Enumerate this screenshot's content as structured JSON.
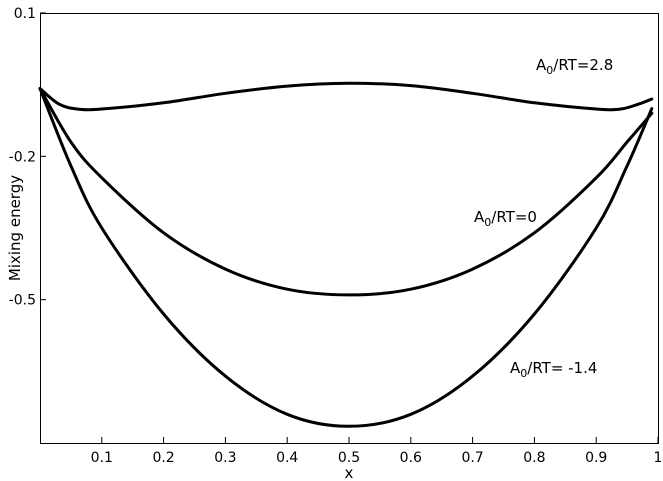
{
  "chart_data": {
    "type": "line",
    "xlabel": "x",
    "ylabel": "Mixing energy",
    "xlim": [
      0.0,
      1.0
    ],
    "ylim": [
      -0.8,
      0.1
    ],
    "x_ticks": [
      0.1,
      0.2,
      0.3,
      0.4,
      0.5,
      0.6,
      0.7,
      0.8,
      0.9,
      1
    ],
    "y_ticks": [
      0.1,
      -0.2,
      -0.5
    ],
    "x_tick_labels": [
      "0.1",
      "0.2",
      "0.3",
      "0.4",
      "0.5",
      "0.6",
      "0.7",
      "0.8",
      "0.9",
      "1"
    ],
    "y_tick_labels": [
      "0.1",
      "-0.2",
      "-0.5"
    ],
    "grid": false,
    "legend": "none",
    "series": [
      {
        "label_prefix": "A",
        "label_sub": "0",
        "label_suffix": "/RT=2.8",
        "x": [
          0.0,
          0.03,
          0.06,
          0.1,
          0.2,
          0.3,
          0.4,
          0.5,
          0.6,
          0.7,
          0.8,
          0.9,
          0.94,
          0.97,
          0.99
        ],
        "y": [
          -0.058,
          -0.09,
          -0.101,
          -0.101,
          -0.088,
          -0.068,
          -0.053,
          -0.047,
          -0.052,
          -0.068,
          -0.088,
          -0.101,
          -0.101,
          -0.09,
          -0.08
        ]
      },
      {
        "label_prefix": "A",
        "label_sub": "0",
        "label_suffix": "/RT=0",
        "x": [
          0.0,
          0.05,
          0.1,
          0.2,
          0.3,
          0.4,
          0.5,
          0.6,
          0.7,
          0.8,
          0.9,
          0.95,
          0.99
        ],
        "y": [
          -0.058,
          -0.17,
          -0.245,
          -0.36,
          -0.436,
          -0.478,
          -0.49,
          -0.478,
          -0.436,
          -0.36,
          -0.245,
          -0.17,
          -0.11
        ]
      },
      {
        "label_prefix": "A",
        "label_sub": "0",
        "label_suffix": "/RT= -1.4",
        "x": [
          0.0,
          0.05,
          0.1,
          0.2,
          0.3,
          0.4,
          0.5,
          0.6,
          0.7,
          0.8,
          0.9,
          0.95,
          0.99
        ],
        "y": [
          -0.058,
          -0.22,
          -0.35,
          -0.53,
          -0.66,
          -0.74,
          -0.765,
          -0.74,
          -0.66,
          -0.53,
          -0.35,
          -0.22,
          -0.1
        ]
      }
    ]
  }
}
